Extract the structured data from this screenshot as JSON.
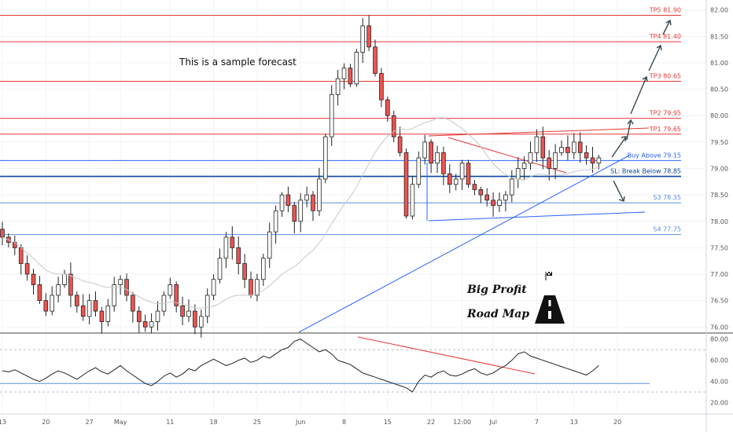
{
  "chart_data": {
    "type": "candlestick",
    "price_axis": {
      "min": 75.9,
      "max": 82.1,
      "ticks": [
        "82.00",
        "81.50",
        "81.00",
        "80.50",
        "80.00",
        "79.50",
        "79.00",
        "78.50",
        "78.00",
        "77.50",
        "77.00",
        "76.50",
        "76.00"
      ],
      "tick_values": [
        82.0,
        81.5,
        81.0,
        80.5,
        80.0,
        79.5,
        79.0,
        78.5,
        78.0,
        77.5,
        77.0,
        76.5,
        76.0
      ]
    },
    "rsi_axis": {
      "min": 10,
      "max": 85,
      "ticks": [
        "80.00",
        "60.00",
        "40.00",
        "20.00"
      ],
      "tick_values": [
        80,
        60,
        40,
        20
      ],
      "levels": [
        70,
        30
      ]
    },
    "time_axis": {
      "labels": [
        "13",
        "20",
        "27",
        "May",
        "11",
        "18",
        "25",
        "Jun",
        "8",
        "15",
        "22",
        "12:00",
        "Jul",
        "7",
        "13",
        "20"
      ],
      "bar_index": [
        0,
        7,
        14,
        19,
        27,
        34,
        41,
        48,
        55,
        62,
        69,
        74,
        79,
        86,
        92,
        99
      ]
    },
    "levels": [
      {
        "label": "TP5 81.90",
        "value": 81.9,
        "color": "#e53935"
      },
      {
        "label": "TP4 81.40",
        "value": 81.4,
        "color": "#e53935"
      },
      {
        "label": "TP3 80.65",
        "value": 80.65,
        "color": "#e53935"
      },
      {
        "label": "TP2 79.95",
        "value": 79.95,
        "color": "#e53935"
      },
      {
        "label": "TP1 79.65",
        "value": 79.65,
        "color": "#e53935"
      },
      {
        "label": "Buy Above 79.15",
        "value": 79.15,
        "color": "#2962ff"
      },
      {
        "label": "SL: Break Below 78.85",
        "value": 78.85,
        "color": "#0d47a1"
      },
      {
        "label": "S3 78.35",
        "value": 78.35,
        "color": "#5c8ee6"
      },
      {
        "label": "S4 77.75",
        "value": 77.75,
        "color": "#5c8ee6"
      }
    ],
    "closes": [
      77.7,
      77.6,
      77.5,
      77.2,
      77.0,
      76.8,
      76.5,
      76.3,
      76.6,
      76.8,
      77.0,
      76.6,
      76.4,
      76.2,
      76.5,
      76.3,
      76.1,
      76.4,
      76.8,
      76.9,
      76.6,
      76.3,
      76.1,
      76.0,
      76.1,
      76.3,
      76.6,
      76.8,
      76.4,
      76.2,
      76.3,
      76.0,
      76.2,
      76.6,
      76.9,
      77.3,
      77.7,
      77.5,
      77.2,
      76.9,
      76.6,
      76.9,
      77.3,
      77.8,
      78.2,
      78.5,
      78.3,
      78.0,
      78.4,
      78.5,
      78.2,
      78.8,
      79.6,
      80.4,
      80.7,
      80.9,
      80.6,
      81.2,
      81.7,
      81.3,
      80.8,
      80.3,
      80.0,
      79.6,
      79.3,
      78.1,
      78.7,
      79.2,
      79.5,
      79.1,
      79.3,
      78.9,
      78.7,
      78.8,
      79.1,
      78.7,
      78.6,
      78.5,
      78.4,
      78.3,
      78.4,
      78.5,
      78.8,
      79.0,
      79.1,
      79.3,
      79.6,
      79.2,
      79.0,
      79.3,
      79.4,
      79.3,
      79.5,
      79.3,
      79.2,
      79.1,
      79.2
    ],
    "rsi": [
      50,
      49,
      51,
      48,
      45,
      42,
      40,
      43,
      47,
      50,
      48,
      45,
      42,
      46,
      50,
      53,
      49,
      47,
      51,
      55,
      50,
      46,
      42,
      38,
      36,
      40,
      45,
      48,
      44,
      47,
      52,
      50,
      55,
      58,
      61,
      58,
      55,
      57,
      60,
      62,
      58,
      60,
      64,
      62,
      66,
      70,
      72,
      78,
      80,
      76,
      72,
      68,
      70,
      66,
      60,
      58,
      56,
      52,
      48,
      46,
      44,
      42,
      40,
      38,
      36,
      34,
      30,
      40,
      46,
      44,
      48,
      50,
      46,
      45,
      47,
      50,
      52,
      48,
      46,
      48,
      52,
      55,
      60,
      66,
      68,
      64,
      62,
      60,
      58,
      56,
      54,
      52,
      50,
      48,
      46,
      50,
      55
    ],
    "annotations": {
      "note": "This is a sample forecast",
      "brand_line1": "Big Profit",
      "brand_line2": "Road Map"
    }
  }
}
